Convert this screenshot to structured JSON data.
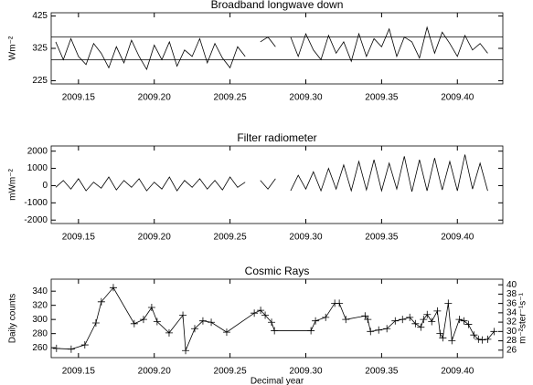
{
  "chart_data": [
    {
      "type": "line",
      "title": "Broadband longwave down",
      "ylabel": "Wm⁻²",
      "x": [
        2009.135,
        2009.14,
        2009.145,
        2009.15,
        2009.155,
        2009.16,
        2009.165,
        2009.17,
        2009.175,
        2009.18,
        2009.185,
        2009.19,
        2009.195,
        2009.2,
        2009.205,
        2009.21,
        2009.215,
        2009.22,
        2009.225,
        2009.23,
        2009.235,
        2009.24,
        2009.245,
        2009.25,
        2009.255,
        2009.26,
        2009.265,
        2009.27,
        2009.275,
        2009.28,
        2009.285,
        2009.29,
        2009.295,
        2009.3,
        2009.305,
        2009.31,
        2009.315,
        2009.32,
        2009.325,
        2009.33,
        2009.335,
        2009.34,
        2009.345,
        2009.35,
        2009.355,
        2009.36,
        2009.365,
        2009.37,
        2009.375,
        2009.38,
        2009.385,
        2009.39,
        2009.395,
        2009.4,
        2009.405,
        2009.41,
        2009.415,
        2009.42
      ],
      "series": [
        {
          "color": "#000000",
          "values": [
            345,
            290,
            355,
            300,
            275,
            340,
            310,
            265,
            330,
            280,
            350,
            300,
            260,
            335,
            290,
            345,
            270,
            320,
            300,
            355,
            280,
            340,
            295,
            265,
            330,
            300,
            null,
            345,
            360,
            330,
            null,
            360,
            300,
            370,
            320,
            290,
            365,
            310,
            345,
            285,
            370,
            300,
            355,
            330,
            385,
            300,
            360,
            345,
            295,
            390,
            310,
            375,
            340,
            300,
            365,
            320,
            340,
            310
          ]
        }
      ],
      "hlines": [
        360,
        290
      ],
      "xlim": [
        2009.132,
        2009.43
      ],
      "ylim": [
        215,
        435
      ],
      "xticks": [
        2009.15,
        {
          "value": 2009.2,
          "label": "2009.20"
        },
        2009.25,
        {
          "value": 2009.3,
          "label": "2009.30"
        },
        2009.35,
        {
          "value": 2009.4,
          "label": "2009.40"
        }
      ],
      "yticks": [
        225,
        325,
        425
      ]
    },
    {
      "type": "line",
      "title": "Filter radiometer",
      "ylabel": "mWm⁻²",
      "x": [
        2009.135,
        2009.14,
        2009.145,
        2009.15,
        2009.155,
        2009.16,
        2009.165,
        2009.17,
        2009.175,
        2009.18,
        2009.185,
        2009.19,
        2009.195,
        2009.2,
        2009.205,
        2009.21,
        2009.215,
        2009.22,
        2009.225,
        2009.23,
        2009.235,
        2009.24,
        2009.245,
        2009.25,
        2009.255,
        2009.26,
        2009.265,
        2009.27,
        2009.275,
        2009.28,
        2009.285,
        2009.29,
        2009.295,
        2009.3,
        2009.305,
        2009.31,
        2009.315,
        2009.32,
        2009.325,
        2009.33,
        2009.335,
        2009.34,
        2009.345,
        2009.35,
        2009.355,
        2009.36,
        2009.365,
        2009.37,
        2009.375,
        2009.38,
        2009.385,
        2009.39,
        2009.395,
        2009.4,
        2009.405,
        2009.41,
        2009.415,
        2009.42
      ],
      "series": [
        {
          "color": "#000000",
          "values": [
            -100,
            300,
            -200,
            400,
            -300,
            200,
            -150,
            500,
            -250,
            300,
            -100,
            400,
            -300,
            200,
            -200,
            500,
            -300,
            300,
            -100,
            400,
            -200,
            300,
            -250,
            500,
            -100,
            200,
            null,
            300,
            -200,
            400,
            null,
            -300,
            600,
            -200,
            800,
            -300,
            1000,
            -200,
            1200,
            -300,
            1400,
            -250,
            1500,
            -300,
            1300,
            -200,
            1700,
            -350,
            1500,
            -300,
            1600,
            -250,
            1400,
            -300,
            1800,
            -200,
            1300,
            -300
          ]
        }
      ],
      "xlim": [
        2009.132,
        2009.43
      ],
      "ylim": [
        -2200,
        2300
      ],
      "xticks": [
        2009.15,
        {
          "value": 2009.2,
          "label": "2009.20"
        },
        2009.25,
        {
          "value": 2009.3,
          "label": "2009.30"
        },
        2009.35,
        {
          "value": 2009.4,
          "label": "2009.40"
        }
      ],
      "yticks": [
        -2000,
        -1000,
        0,
        1000,
        2000
      ]
    },
    {
      "type": "line",
      "title": "Cosmic Rays",
      "xlabel": "Decimal year",
      "ylabel": "Daily counts",
      "y2label": "m⁻²ster⁻¹s⁻¹",
      "marker": "+",
      "x": [
        2009.1355,
        2009.1452,
        2009.1542,
        2009.1615,
        2009.1651,
        2009.173,
        2009.1868,
        2009.1929,
        2009.1983,
        2009.2019,
        2009.2098,
        2009.2189,
        2009.2207,
        2009.2267,
        2009.2321,
        2009.2376,
        2009.2478,
        2009.266,
        2009.2702,
        2009.2732,
        2009.2774,
        2009.2793,
        2009.3034,
        2009.3064,
        2009.3131,
        2009.3191,
        2009.3221,
        2009.3264,
        2009.3391,
        2009.3409,
        2009.3427,
        2009.3481,
        2009.3535,
        2009.359,
        2009.3638,
        2009.3686,
        2009.3723,
        2009.3759,
        2009.3777,
        2009.3801,
        2009.3831,
        2009.3868,
        2009.3886,
        2009.3904,
        2009.394,
        2009.3964,
        2009.4013,
        2009.4043,
        2009.4073,
        2009.4109,
        2009.4139,
        2009.4164,
        2009.42,
        2009.4242
      ],
      "series": [
        {
          "color": "#000000",
          "values": [
            259,
            258,
            264,
            295,
            325,
            345,
            294,
            300,
            317,
            297,
            281,
            306,
            256,
            287,
            298,
            296,
            282,
            309,
            313,
            306,
            296,
            284,
            284,
            298,
            303,
            323,
            323,
            300,
            305,
            300,
            283,
            285,
            287,
            298,
            300,
            303,
            294,
            289,
            300,
            307,
            297,
            312,
            280,
            274,
            323,
            270,
            300,
            298,
            293,
            278,
            272,
            271,
            272,
            283
          ]
        }
      ],
      "xlim": [
        2009.132,
        2009.43
      ],
      "ylim": [
        246,
        357
      ],
      "y2lim": [
        24.4,
        41.2
      ],
      "xticks": [
        2009.15,
        {
          "value": 2009.2,
          "label": "2009.20"
        },
        2009.25,
        {
          "value": 2009.3,
          "label": "2009.30"
        },
        2009.35,
        {
          "value": 2009.4,
          "label": "2009.40"
        }
      ],
      "yticks": [
        260,
        280,
        300,
        320,
        340
      ],
      "y2ticks": [
        26,
        28,
        30,
        32,
        34,
        36,
        38,
        40
      ]
    }
  ]
}
